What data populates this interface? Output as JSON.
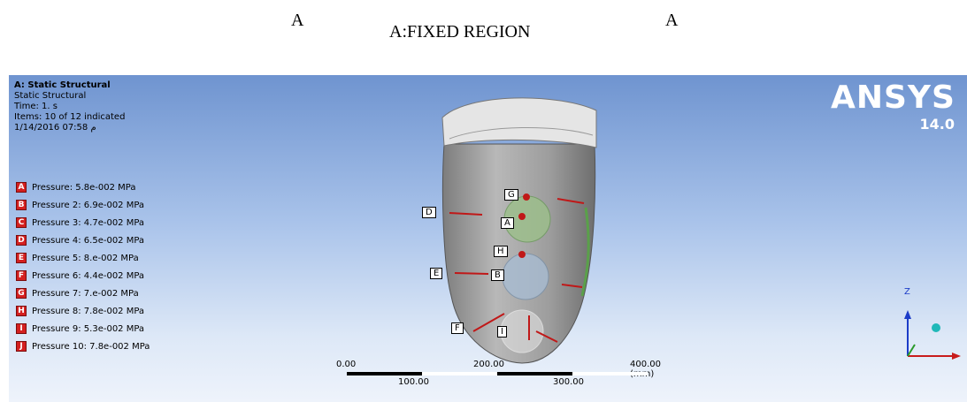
{
  "captions": {
    "left": "A",
    "main": "A:FIXED REGION",
    "right": "A"
  },
  "info": {
    "title": "A: Static Structural",
    "subtitle": "Static Structural",
    "time": "Time: 1. s",
    "items": "Items: 10 of 12 indicated",
    "date": "1/14/2016 07:58 م"
  },
  "legend": [
    {
      "letter": "A",
      "text": "Pressure: 5.8e-002 MPa"
    },
    {
      "letter": "B",
      "text": "Pressure 2: 6.9e-002 MPa"
    },
    {
      "letter": "C",
      "text": "Pressure 3: 4.7e-002 MPa"
    },
    {
      "letter": "D",
      "text": "Pressure 4: 6.5e-002 MPa"
    },
    {
      "letter": "E",
      "text": "Pressure 5: 8.e-002 MPa"
    },
    {
      "letter": "F",
      "text": "Pressure 6: 4.4e-002 MPa"
    },
    {
      "letter": "G",
      "text": "Pressure 7: 7.e-002 MPa"
    },
    {
      "letter": "H",
      "text": "Pressure 8: 7.8e-002 MPa"
    },
    {
      "letter": "I",
      "text": "Pressure 9: 5.3e-002 MPa"
    },
    {
      "letter": "J",
      "text": "Pressure 10: 7.8e-002 MPa"
    }
  ],
  "logo": {
    "word": "ANSYS",
    "version": "14.0"
  },
  "markers": {
    "g": "G",
    "a": "A",
    "d": "D",
    "h": "H",
    "e": "E",
    "b": "B",
    "f": "F",
    "i": "I"
  },
  "axis": {
    "z_label": "Z"
  },
  "scale": {
    "top_labels": [
      "0.00",
      "200.00",
      "400.00 (mm)"
    ],
    "bottom_labels": [
      "100.00",
      "300.00"
    ]
  },
  "colors": {
    "pressure_marker": "#d42020",
    "model_gray": "#9a9a9a",
    "viewport_top": "#6f94d0"
  }
}
